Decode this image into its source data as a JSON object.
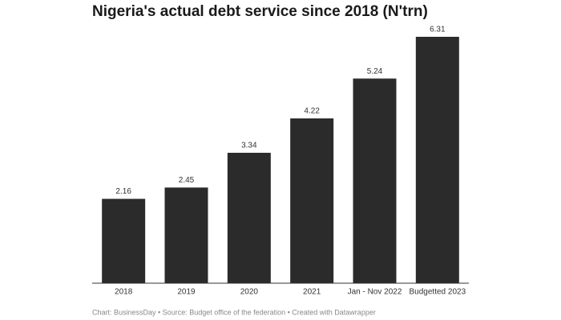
{
  "chart_data": {
    "type": "bar",
    "title": "Nigeria's actual debt service since 2018 (N'trn)",
    "categories": [
      "2018",
      "2019",
      "2020",
      "2021",
      "Jan - Nov 2022",
      "Budgetted 2023"
    ],
    "values": [
      2.16,
      2.45,
      3.34,
      4.22,
      5.24,
      6.31
    ],
    "color": "#2b2b2b",
    "source": "Chart: BusinessDay • Source: Budget office of the federation • Created with Datawrapper"
  }
}
